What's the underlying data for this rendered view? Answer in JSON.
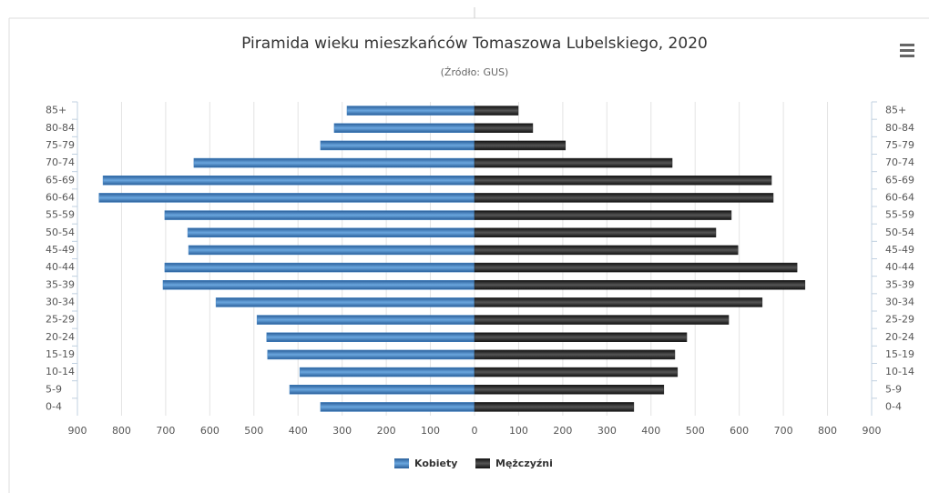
{
  "chart_data": {
    "type": "pyramid",
    "title": "Piramida wieku mieszkańców Tomaszowa Lubelskiego, 2020",
    "subtitle": "(Źródło: GUS)",
    "categories": [
      "85+",
      "80-84",
      "75-79",
      "70-74",
      "65-69",
      "60-64",
      "55-59",
      "50-54",
      "45-49",
      "40-44",
      "35-39",
      "30-34",
      "25-29",
      "20-24",
      "15-19",
      "10-14",
      "5-9",
      "0-4"
    ],
    "series": [
      {
        "name": "Kobiety",
        "color": "#3d7ebf",
        "values": [
          289,
          318,
          349,
          636,
          842,
          851,
          702,
          650,
          648,
          702,
          706,
          586,
          493,
          471,
          469,
          396,
          419,
          349
        ]
      },
      {
        "name": "Mężczyźni",
        "color": "#222222",
        "values": [
          99,
          132,
          206,
          448,
          673,
          677,
          582,
          547,
          597,
          731,
          749,
          652,
          576,
          481,
          454,
          460,
          429,
          361
        ]
      }
    ],
    "xlim": [
      0,
      900
    ],
    "xticks": [
      0,
      100,
      200,
      300,
      400,
      500,
      600,
      700,
      800,
      900
    ],
    "grid": true,
    "legend": "bottom"
  }
}
